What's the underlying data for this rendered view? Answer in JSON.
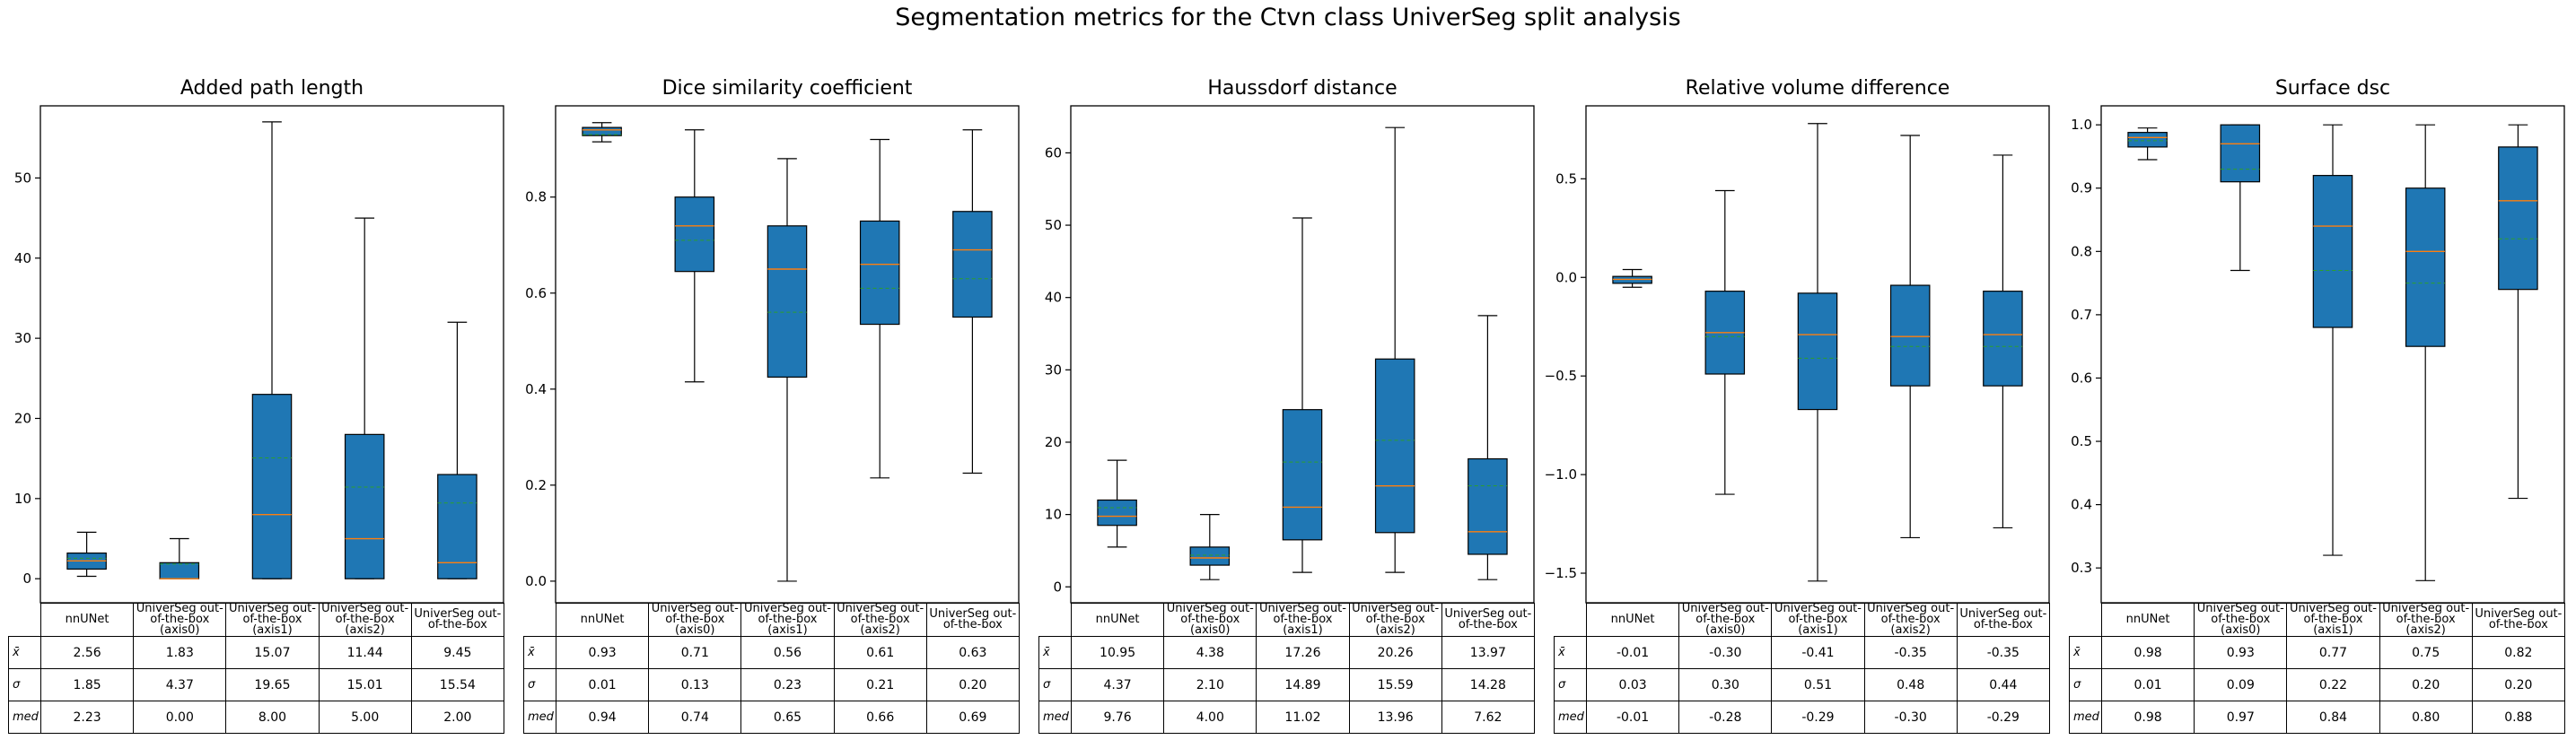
{
  "title": "Segmentation metrics for the Ctvn class UniverSeg split analysis",
  "row_labels": [
    "x̄",
    "σ",
    "med"
  ],
  "colors": {
    "box_fill": "#1f77b4",
    "median_line": "#ff7f0e",
    "mean_line": "#2ca02c",
    "whisker": "#000000"
  },
  "chart_data": [
    {
      "type": "box",
      "title": "Added path length",
      "categories": [
        "nnUNet",
        "UniverSeg out-of-the-box (axis0)",
        "UniverSeg out-of-the-box (axis1)",
        "UniverSeg out-of-the-box (axis2)",
        "UniverSeg out-of-the-box"
      ],
      "category_labels": [
        [
          "nnUNet"
        ],
        [
          "UniverSeg out-",
          "of-the-box",
          "(axis0)"
        ],
        [
          "UniverSeg out-",
          "of-the-box",
          "(axis1)"
        ],
        [
          "UniverSeg out-",
          "of-the-box",
          "(axis2)"
        ],
        [
          "UniverSeg out-",
          "of-the-box"
        ]
      ],
      "ylim": [
        -3,
        59
      ],
      "yticks": [
        0,
        10,
        20,
        30,
        40,
        50
      ],
      "ytick_labels": [
        "0",
        "10",
        "20",
        "30",
        "40",
        "50"
      ],
      "boxes": [
        {
          "whislo": 0.3,
          "q1": 1.2,
          "med": 2.23,
          "mean": 2.56,
          "q3": 3.2,
          "whishi": 5.8
        },
        {
          "whislo": 0.0,
          "q1": 0.0,
          "med": 0.0,
          "mean": 1.83,
          "q3": 2.0,
          "whishi": 5.0
        },
        {
          "whislo": 0.0,
          "q1": 0.0,
          "med": 8.0,
          "mean": 15.07,
          "q3": 23.0,
          "whishi": 57.0
        },
        {
          "whislo": 0.0,
          "q1": 0.0,
          "med": 5.0,
          "mean": 11.44,
          "q3": 18.0,
          "whishi": 45.0
        },
        {
          "whislo": 0.0,
          "q1": 0.0,
          "med": 2.0,
          "mean": 9.45,
          "q3": 13.0,
          "whishi": 32.0
        }
      ],
      "table": {
        "mean": [
          "2.56",
          "1.83",
          "15.07",
          "11.44",
          "9.45"
        ],
        "std": [
          "1.85",
          "4.37",
          "19.65",
          "15.01",
          "15.54"
        ],
        "median": [
          "2.23",
          "0.00",
          "8.00",
          "5.00",
          "2.00"
        ]
      }
    },
    {
      "type": "box",
      "title": "Dice similarity coefficient",
      "categories": [
        "nnUNet",
        "UniverSeg out-of-the-box (axis0)",
        "UniverSeg out-of-the-box (axis1)",
        "UniverSeg out-of-the-box (axis2)",
        "UniverSeg out-of-the-box"
      ],
      "category_labels": [
        [
          "nnUNet"
        ],
        [
          "UniverSeg out-",
          "of-the-box",
          "(axis0)"
        ],
        [
          "UniverSeg out-",
          "of-the-box",
          "(axis1)"
        ],
        [
          "UniverSeg out-",
          "of-the-box",
          "(axis2)"
        ],
        [
          "UniverSeg out-",
          "of-the-box"
        ]
      ],
      "ylim": [
        -0.045,
        0.99
      ],
      "yticks": [
        0.0,
        0.2,
        0.4,
        0.6,
        0.8
      ],
      "ytick_labels": [
        "0.0",
        "0.2",
        "0.4",
        "0.6",
        "0.8"
      ],
      "boxes": [
        {
          "whislo": 0.915,
          "q1": 0.928,
          "med": 0.94,
          "mean": 0.93,
          "q3": 0.945,
          "whishi": 0.955
        },
        {
          "whislo": 0.415,
          "q1": 0.645,
          "med": 0.74,
          "mean": 0.71,
          "q3": 0.8,
          "whishi": 0.94
        },
        {
          "whislo": 0.0,
          "q1": 0.425,
          "med": 0.65,
          "mean": 0.56,
          "q3": 0.74,
          "whishi": 0.88
        },
        {
          "whislo": 0.215,
          "q1": 0.535,
          "med": 0.66,
          "mean": 0.61,
          "q3": 0.75,
          "whishi": 0.92
        },
        {
          "whislo": 0.225,
          "q1": 0.55,
          "med": 0.69,
          "mean": 0.63,
          "q3": 0.77,
          "whishi": 0.94
        }
      ],
      "table": {
        "mean": [
          "0.93",
          "0.71",
          "0.56",
          "0.61",
          "0.63"
        ],
        "std": [
          "0.01",
          "0.13",
          "0.23",
          "0.21",
          "0.20"
        ],
        "median": [
          "0.94",
          "0.74",
          "0.65",
          "0.66",
          "0.69"
        ]
      }
    },
    {
      "type": "box",
      "title": "Haussdorf distance",
      "categories": [
        "nnUNet",
        "UniverSeg out-of-the-box (axis0)",
        "UniverSeg out-of-the-box (axis1)",
        "UniverSeg out-of-the-box (axis2)",
        "UniverSeg out-of-the-box"
      ],
      "category_labels": [
        [
          "nnUNet"
        ],
        [
          "UniverSeg out-",
          "of-the-box",
          "(axis0)"
        ],
        [
          "UniverSeg out-",
          "of-the-box",
          "(axis1)"
        ],
        [
          "UniverSeg out-",
          "of-the-box",
          "(axis2)"
        ],
        [
          "UniverSeg out-",
          "of-the-box"
        ]
      ],
      "ylim": [
        -2.2,
        66.5
      ],
      "yticks": [
        0,
        10,
        20,
        30,
        40,
        50,
        60
      ],
      "ytick_labels": [
        "0",
        "10",
        "20",
        "30",
        "40",
        "50",
        "60"
      ],
      "boxes": [
        {
          "whislo": 5.5,
          "q1": 8.5,
          "med": 9.76,
          "mean": 10.95,
          "q3": 12.0,
          "whishi": 17.5
        },
        {
          "whislo": 1.0,
          "q1": 3.0,
          "med": 4.0,
          "mean": 4.38,
          "q3": 5.5,
          "whishi": 10.0
        },
        {
          "whislo": 2.0,
          "q1": 6.5,
          "med": 11.02,
          "mean": 17.26,
          "q3": 24.5,
          "whishi": 51.0
        },
        {
          "whislo": 2.0,
          "q1": 7.5,
          "med": 13.96,
          "mean": 20.26,
          "q3": 31.5,
          "whishi": 63.5
        },
        {
          "whislo": 1.0,
          "q1": 4.5,
          "med": 7.62,
          "mean": 13.97,
          "q3": 17.7,
          "whishi": 37.5
        }
      ],
      "table": {
        "mean": [
          "10.95",
          "4.38",
          "17.26",
          "20.26",
          "13.97"
        ],
        "std": [
          "4.37",
          "2.10",
          "14.89",
          "15.59",
          "14.28"
        ],
        "median": [
          "9.76",
          "4.00",
          "11.02",
          "13.96",
          "7.62"
        ]
      }
    },
    {
      "type": "box",
      "title": "Relative volume difference",
      "categories": [
        "nnUNet",
        "UniverSeg out-of-the-box (axis0)",
        "UniverSeg out-of-the-box (axis1)",
        "UniverSeg out-of-the-box (axis2)",
        "UniverSeg out-of-the-box"
      ],
      "category_labels": [
        [
          "nnUNet"
        ],
        [
          "UniverSeg out-",
          "of-the-box",
          "(axis0)"
        ],
        [
          "UniverSeg out-",
          "of-the-box",
          "(axis1)"
        ],
        [
          "UniverSeg out-",
          "of-the-box",
          "(axis2)"
        ],
        [
          "UniverSeg out-",
          "of-the-box"
        ]
      ],
      "ylim": [
        -1.65,
        0.87
      ],
      "yticks": [
        -1.5,
        -1.0,
        -0.5,
        0.0,
        0.5
      ],
      "ytick_labels": [
        "−1.5",
        "−1.0",
        "−0.5",
        "0.0",
        "0.5"
      ],
      "boxes": [
        {
          "whislo": -0.05,
          "q1": -0.03,
          "med": -0.01,
          "mean": -0.01,
          "q3": 0.005,
          "whishi": 0.04
        },
        {
          "whislo": -1.1,
          "q1": -0.49,
          "med": -0.28,
          "mean": -0.3,
          "q3": -0.07,
          "whishi": 0.44
        },
        {
          "whislo": -1.54,
          "q1": -0.67,
          "med": -0.29,
          "mean": -0.41,
          "q3": -0.08,
          "whishi": 0.78
        },
        {
          "whislo": -1.32,
          "q1": -0.55,
          "med": -0.3,
          "mean": -0.35,
          "q3": -0.04,
          "whishi": 0.72
        },
        {
          "whislo": -1.27,
          "q1": -0.55,
          "med": -0.29,
          "mean": -0.35,
          "q3": -0.07,
          "whishi": 0.62
        }
      ],
      "table": {
        "mean": [
          "-0.01",
          "-0.30",
          "-0.41",
          "-0.35",
          "-0.35"
        ],
        "std": [
          "0.03",
          "0.30",
          "0.51",
          "0.48",
          "0.44"
        ],
        "median": [
          "-0.01",
          "-0.28",
          "-0.29",
          "-0.30",
          "-0.29"
        ]
      }
    },
    {
      "type": "box",
      "title": "Surface dsc",
      "categories": [
        "nnUNet",
        "UniverSeg out-of-the-box (axis0)",
        "UniverSeg out-of-the-box (axis1)",
        "UniverSeg out-of-the-box (axis2)",
        "UniverSeg out-of-the-box"
      ],
      "category_labels": [
        [
          "nnUNet"
        ],
        [
          "UniverSeg out-",
          "of-the-box",
          "(axis0)"
        ],
        [
          "UniverSeg out-",
          "of-the-box",
          "(axis1)"
        ],
        [
          "UniverSeg out-",
          "of-the-box",
          "(axis2)"
        ],
        [
          "UniverSeg out-",
          "of-the-box"
        ]
      ],
      "ylim": [
        0.245,
        1.03
      ],
      "yticks": [
        0.3,
        0.4,
        0.5,
        0.6,
        0.7,
        0.8,
        0.9,
        1.0
      ],
      "ytick_labels": [
        "0.3",
        "0.4",
        "0.5",
        "0.6",
        "0.7",
        "0.8",
        "0.9",
        "1.0"
      ],
      "boxes": [
        {
          "whislo": 0.945,
          "q1": 0.965,
          "med": 0.98,
          "mean": 0.975,
          "q3": 0.988,
          "whishi": 0.995
        },
        {
          "whislo": 0.77,
          "q1": 0.91,
          "med": 0.97,
          "mean": 0.93,
          "q3": 1.0,
          "whishi": 1.0
        },
        {
          "whislo": 0.32,
          "q1": 0.68,
          "med": 0.84,
          "mean": 0.77,
          "q3": 0.92,
          "whishi": 1.0
        },
        {
          "whislo": 0.28,
          "q1": 0.65,
          "med": 0.8,
          "mean": 0.75,
          "q3": 0.9,
          "whishi": 1.0
        },
        {
          "whislo": 0.41,
          "q1": 0.74,
          "med": 0.88,
          "mean": 0.82,
          "q3": 0.965,
          "whishi": 1.0
        }
      ],
      "table": {
        "mean": [
          "0.98",
          "0.93",
          "0.77",
          "0.75",
          "0.82"
        ],
        "std": [
          "0.01",
          "0.09",
          "0.22",
          "0.20",
          "0.20"
        ],
        "median": [
          "0.98",
          "0.97",
          "0.84",
          "0.80",
          "0.88"
        ]
      }
    }
  ]
}
